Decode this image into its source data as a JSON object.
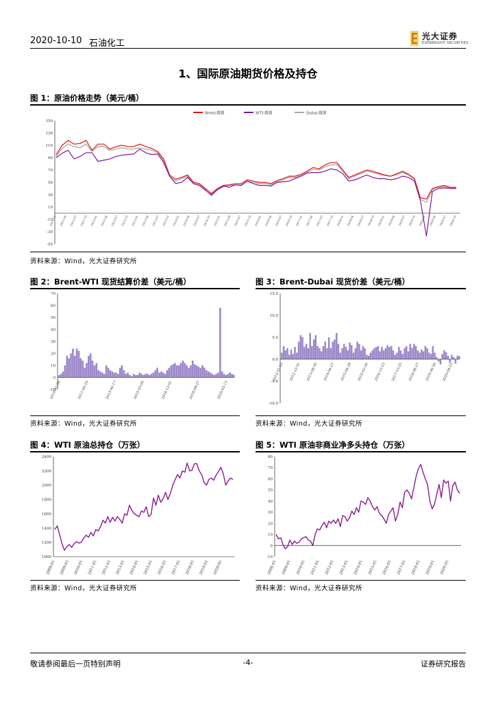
{
  "header": {
    "date": "2020-10-10",
    "sector": "石油化工",
    "brand_name": "光大证券",
    "brand_sub": "EVERBRIGHT SECURITIES"
  },
  "section_title": "1、国际原油期货价格及持仓",
  "source_text": "资料来源：Wind，光大证券研究所",
  "colors": {
    "brent": "#e8120c",
    "wti": "#7a1aa0",
    "dubai": "#a8a8a8",
    "bars": "#9b87c8",
    "line_purple": "#8a1a8f"
  },
  "figures": [
    {
      "id": "fig1",
      "label": "图 1：原油价格走势（美元/桶）"
    },
    {
      "id": "fig2",
      "label": "图 2：Brent-WTI 现货结算价差（美元/桶）"
    },
    {
      "id": "fig3",
      "label": "图 3：Brent-Dubai 现货价差（美元/桶）"
    },
    {
      "id": "fig4",
      "label": "图 4：WTI 原油总持仓（万张）"
    },
    {
      "id": "fig5",
      "label": "图 5：WTI 原油非商业净多头持仓（万张）"
    }
  ],
  "chart_data": [
    {
      "id": "fig1",
      "type": "line",
      "title": "原油价格走势（美元/桶）",
      "legend": [
        "Brent:现货",
        "WTI:现货",
        "Dubai:现货"
      ],
      "y_ticks": [
        "150",
        "130",
        "110",
        "90",
        "70",
        "50",
        "30",
        "10",
        "-10",
        "-30",
        "-50"
      ],
      "ylim": [
        -50,
        150
      ],
      "x_range": [
        "2011-01",
        "2020-10"
      ],
      "x_tick_labels": [
        "2011-01",
        "2011-04",
        "2011-07",
        "2011-10",
        "2012-01",
        "2012-04",
        "2012-07",
        "2012-10",
        "2013-01",
        "2013-04",
        "2013-07",
        "2013-10",
        "2014-01",
        "2014-04",
        "2014-07",
        "2014-10",
        "2015-01",
        "2015-04",
        "2015-07",
        "2015-10",
        "2016-01",
        "2016-04",
        "2016-07",
        "2016-10",
        "2017-01",
        "2017-04",
        "2017-07",
        "2017-10",
        "2018-01",
        "2018-04",
        "2018-07",
        "2018-10",
        "2019-01",
        "2019-04",
        "2019-07",
        "2019-10",
        "2020-01",
        "2020-04",
        "2020-07",
        "2020-10"
      ],
      "series": [
        {
          "name": "Brent:现货",
          "values": [
            95,
            110,
            118,
            112,
            113,
            118,
            102,
            112,
            112,
            104,
            108,
            110,
            108,
            108,
            112,
            108,
            105,
            100,
            88,
            62,
            55,
            58,
            62,
            50,
            48,
            40,
            32,
            40,
            45,
            46,
            48,
            48,
            54,
            52,
            50,
            50,
            48,
            53,
            56,
            60,
            60,
            63,
            68,
            74,
            72,
            78,
            82,
            82,
            70,
            58,
            62,
            66,
            70,
            68,
            65,
            62,
            60,
            64,
            68,
            63,
            56,
            25,
            23,
            40,
            43,
            45,
            42,
            42
          ]
        },
        {
          "name": "WTI:现货",
          "values": [
            90,
            97,
            102,
            88,
            92,
            98,
            98,
            84,
            86,
            88,
            92,
            94,
            95,
            96,
            104,
            98,
            95,
            96,
            82,
            60,
            48,
            50,
            58,
            48,
            45,
            37,
            30,
            38,
            44,
            42,
            46,
            45,
            52,
            48,
            45,
            45,
            44,
            50,
            51,
            52,
            56,
            60,
            65,
            66,
            66,
            68,
            72,
            70,
            64,
            52,
            54,
            58,
            62,
            58,
            56,
            56,
            54,
            56,
            60,
            58,
            52,
            20,
            -37,
            35,
            40,
            41,
            40,
            40
          ]
        },
        {
          "name": "Dubai:现货",
          "values": [
            92,
            105,
            112,
            108,
            106,
            112,
            100,
            108,
            108,
            102,
            104,
            106,
            104,
            104,
            106,
            104,
            102,
            98,
            85,
            60,
            52,
            56,
            60,
            48,
            46,
            38,
            28,
            38,
            43,
            45,
            46,
            46,
            52,
            50,
            48,
            48,
            46,
            51,
            54,
            58,
            58,
            61,
            66,
            71,
            70,
            75,
            78,
            79,
            68,
            56,
            60,
            64,
            68,
            66,
            63,
            61,
            60,
            62,
            66,
            62,
            55,
            22,
            18,
            38,
            42,
            43,
            41,
            41
          ]
        }
      ]
    },
    {
      "id": "fig2",
      "type": "bar",
      "title": "Brent-WTI 现货结算价差（美元/桶）",
      "y_ticks": [
        "70",
        "60",
        "50",
        "40",
        "30",
        "20",
        "10",
        "0",
        "-10"
      ],
      "ylim": [
        -10,
        70
      ],
      "x_tick_labels": [
        "2010-01-04",
        "2011-09-16",
        "2013-06-17",
        "2015-03-04",
        "2016-12-01",
        "2018-08-27",
        "2020-05-13"
      ],
      "values": [
        2,
        3,
        5,
        10,
        18,
        16,
        20,
        24,
        18,
        24,
        22,
        16,
        14,
        8,
        12,
        18,
        20,
        14,
        10,
        12,
        6,
        5,
        4,
        3,
        10,
        8,
        6,
        5,
        4,
        4,
        3,
        8,
        10,
        6,
        3,
        4,
        2,
        1,
        3,
        2,
        2,
        4,
        3,
        2,
        3,
        3,
        2,
        3,
        4,
        6,
        8,
        4,
        5,
        4,
        3,
        6,
        8,
        10,
        11,
        12,
        10,
        10,
        12,
        14,
        12,
        10,
        8,
        10,
        14,
        11,
        10,
        9,
        8,
        10,
        8,
        6,
        5,
        4,
        3,
        2,
        3,
        4,
        58,
        5,
        3,
        2,
        3,
        4,
        3,
        2
      ]
    },
    {
      "id": "fig3",
      "type": "bar",
      "title": "Brent-Dubai 现货价差（美元/桶）",
      "y_ticks": [
        "15.0",
        "10.0",
        "5.0",
        "0.0",
        "-5.0",
        "-10.0"
      ],
      "ylim": [
        -10,
        15
      ],
      "x_tick_labels": [
        "2012-01-03",
        "2012-10-31",
        "2013-08-30",
        "2014-06-27",
        "2015-04-28",
        "2016-02-26",
        "2016-12-23",
        "2017-10-25",
        "2018-08-27",
        "2019-06-26",
        "2020-04-21"
      ],
      "values": [
        1.5,
        3,
        2,
        2.5,
        1,
        2.2,
        1.2,
        2.8,
        1.5,
        4,
        5.5,
        5,
        2.8,
        3.5,
        2.5,
        6,
        3,
        4.5,
        5.5,
        3,
        2.5,
        1.8,
        3,
        4,
        2.5,
        5,
        2.5,
        4,
        4.5,
        6,
        3.5,
        1.5,
        2.5,
        3.5,
        2.8,
        2,
        3.8,
        3.2,
        1.5,
        2.5,
        4,
        3.5,
        2,
        3,
        2.5,
        1,
        0.8,
        1.5,
        2,
        2.5,
        2.8,
        3,
        1.8,
        2.8,
        2,
        2.5,
        3.2,
        2.8,
        3,
        2,
        1,
        1.5,
        2.8,
        2,
        1.2,
        2.5,
        3,
        1.8,
        3.5,
        2.6,
        3.5,
        3,
        2,
        1.5,
        2.2,
        1.8,
        3,
        2.5,
        1.5,
        1.2,
        3,
        1.5,
        0.5,
        -0.5,
        -1.2,
        1.2,
        2,
        1.6,
        0.8,
        -0.8,
        1,
        0.5,
        -1,
        0.8,
        0.7
      ]
    },
    {
      "id": "fig4",
      "type": "line",
      "title": "WTI 原油总持仓（万张）",
      "y_ticks": [
        "2400",
        "2200",
        "2000",
        "1800",
        "1600",
        "1400",
        "1200",
        "1000"
      ],
      "ylim": [
        1000,
        2400
      ],
      "x_tick_labels": [
        "2008-01",
        "2009-01",
        "2010-01",
        "2011-01",
        "2012-01",
        "2013-01",
        "2014-01",
        "2015-01",
        "2016-01",
        "2017-01",
        "2018-01",
        "2019-01",
        "2020-01"
      ],
      "values": [
        1380,
        1430,
        1310,
        1180,
        1090,
        1140,
        1170,
        1130,
        1180,
        1210,
        1190,
        1200,
        1260,
        1300,
        1270,
        1340,
        1290,
        1380,
        1360,
        1420,
        1510,
        1470,
        1560,
        1480,
        1550,
        1500,
        1560,
        1520,
        1470,
        1600,
        1580,
        1720,
        1650,
        1600,
        1580,
        1560,
        1640,
        1620,
        1700,
        1560,
        1590,
        1820,
        1720,
        1860,
        1760,
        1810,
        1900,
        1800,
        1880,
        2000,
        2080,
        2150,
        2100,
        2200,
        2180,
        2310,
        2200,
        2210,
        2300,
        2300,
        2200,
        2150,
        2040,
        2000,
        2080,
        2100,
        2070,
        2140,
        2190,
        2250,
        2160,
        2000,
        2060,
        2100,
        2080
      ]
    },
    {
      "id": "fig5",
      "type": "line",
      "title": "WTI 原油非商业净多头持仓（万张）",
      "y_ticks": [
        "80",
        "70",
        "60",
        "50",
        "40",
        "30",
        "20",
        "10",
        "0",
        "-10"
      ],
      "ylim": [
        -10,
        80
      ],
      "x_tick_labels": [
        "2008-01",
        "2009-01",
        "2010-01",
        "2011-01",
        "2012-01",
        "2013-01",
        "2014-01",
        "2015-01",
        "2016-01",
        "2017-01",
        "2018-01",
        "2019-01",
        "2020-01"
      ],
      "values": [
        10,
        6,
        7,
        1,
        -3,
        -1,
        5,
        1,
        4,
        2,
        3,
        6,
        7,
        8,
        5,
        4,
        0,
        10,
        15,
        14,
        18,
        21,
        16,
        22,
        20,
        23,
        20,
        24,
        17,
        27,
        26,
        22,
        25,
        31,
        28,
        34,
        30,
        40,
        39,
        37,
        43,
        40,
        35,
        32,
        35,
        29,
        27,
        24,
        20,
        28,
        31,
        34,
        22,
        28,
        39,
        34,
        48,
        50,
        47,
        42,
        52,
        62,
        69,
        73,
        66,
        60,
        55,
        40,
        33,
        37,
        46,
        55,
        43,
        59,
        56,
        58,
        40,
        54,
        57,
        50,
        47
      ]
    }
  ],
  "footer": {
    "left": "敬请参阅最后一页特别声明",
    "page": "-4-",
    "right": "证券研究报告"
  }
}
